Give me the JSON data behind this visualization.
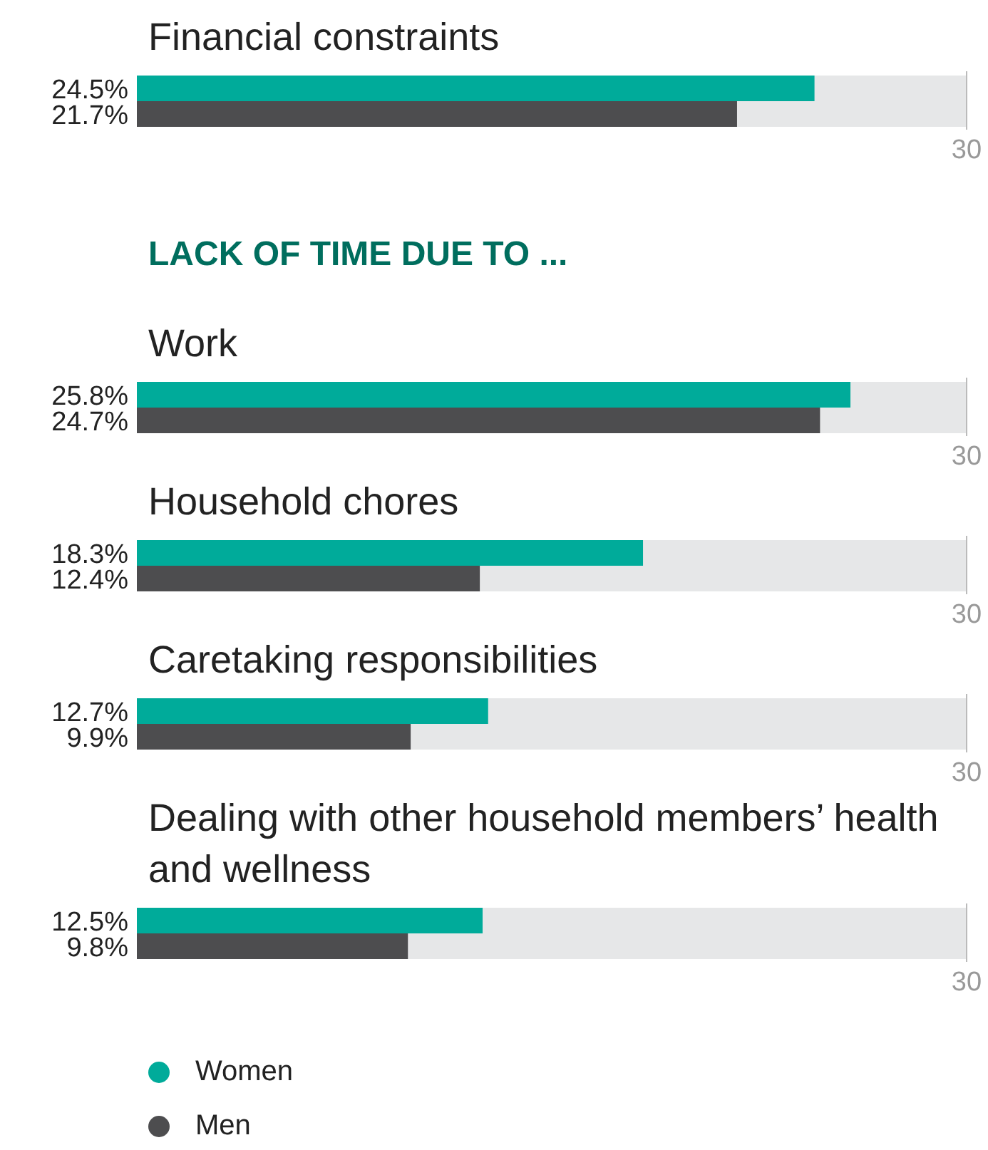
{
  "chart_data": [
    {
      "type": "bar",
      "orientation": "horizontal",
      "title": "Financial constraints",
      "categories": [
        null
      ],
      "xlim": [
        0,
        30
      ],
      "ref_lines": [
        {
          "axis": "x",
          "value": 30,
          "label": "30",
          "color": "#bbbbbb"
        }
      ],
      "series": [
        {
          "color": "#00ab9a",
          "values": [
            24.5
          ],
          "value_labels": [
            "24.5%"
          ]
        },
        {
          "color": "#4d4d4f",
          "values": [
            21.7
          ],
          "value_labels": [
            "21.7%"
          ]
        }
      ]
    },
    {
      "type": "bar",
      "orientation": "horizontal",
      "subtitle": "LACK OF TIME DUE TO ...",
      "title": "Work",
      "categories": [
        null
      ],
      "xlim": [
        0,
        30
      ],
      "ref_lines": [
        {
          "axis": "x",
          "value": 30,
          "label": "30",
          "color": "#bbbbbb"
        }
      ],
      "series": [
        {
          "color": "#00ab9a",
          "values": [
            25.8
          ],
          "value_labels": [
            "25.8%"
          ]
        },
        {
          "color": "#4d4d4f",
          "values": [
            24.7
          ],
          "value_labels": [
            "24.7%"
          ]
        }
      ]
    },
    {
      "type": "bar",
      "orientation": "horizontal",
      "title": "Household chores",
      "categories": [
        null
      ],
      "xlim": [
        0,
        30
      ],
      "ref_lines": [
        {
          "axis": "x",
          "value": 30,
          "label": "30",
          "color": "#bbbbbb"
        }
      ],
      "series": [
        {
          "color": "#00ab9a",
          "values": [
            18.3
          ],
          "value_labels": [
            "18.3%"
          ]
        },
        {
          "color": "#4d4d4f",
          "values": [
            12.4
          ],
          "value_labels": [
            "12.4%"
          ]
        }
      ]
    },
    {
      "type": "bar",
      "orientation": "horizontal",
      "title": "Caretaking responsibilities",
      "categories": [
        null
      ],
      "xlim": [
        0,
        30
      ],
      "ref_lines": [
        {
          "axis": "x",
          "value": 30,
          "label": "30",
          "color": "#bbbbbb"
        }
      ],
      "series": [
        {
          "color": "#00ab9a",
          "values": [
            12.7
          ],
          "value_labels": [
            "12.7%"
          ]
        },
        {
          "color": "#4d4d4f",
          "values": [
            9.9
          ],
          "value_labels": [
            "9.9%"
          ]
        }
      ]
    },
    {
      "type": "bar",
      "orientation": "horizontal",
      "title": "Dealing with other household members’ health and wellness",
      "categories": [
        null
      ],
      "xlim": [
        0,
        30
      ],
      "ref_lines": [
        {
          "axis": "x",
          "value": 30,
          "label": "30",
          "color": "#bbbbbb"
        }
      ],
      "legend": "bottom left",
      "series": [
        {
          "name": "Women",
          "color": "#00ab9a",
          "values": [
            12.5
          ],
          "value_labels": [
            "12.5%"
          ]
        },
        {
          "name": "Men",
          "color": "#4d4d4f",
          "values": [
            9.8
          ],
          "value_labels": [
            "9.8%"
          ]
        }
      ]
    }
  ]
}
